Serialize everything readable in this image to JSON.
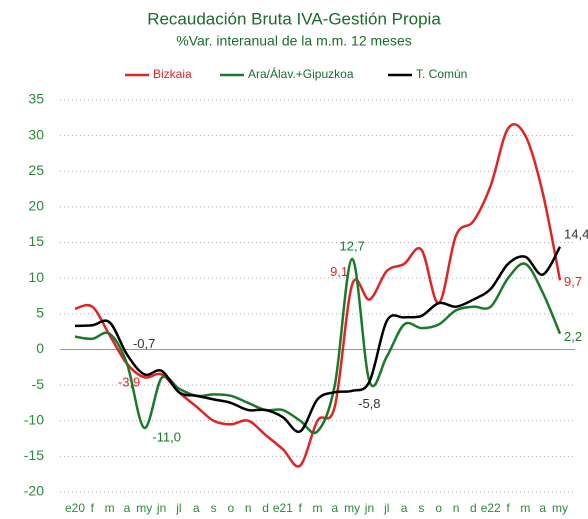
{
  "chart_data": {
    "type": "line",
    "title": "Recaudación Bruta IVA-Gestión Propia",
    "subtitle": "%Var. interanual de la m.m. 12 meses",
    "categories": [
      "e20",
      "f",
      "m",
      "a",
      "my",
      "jn",
      "jl",
      "a",
      "s",
      "o",
      "n",
      "d",
      "e21",
      "f",
      "m",
      "a",
      "my",
      "jn",
      "jl",
      "a",
      "s",
      "o",
      "n",
      "d",
      "e22",
      "f",
      "m",
      "a",
      "my"
    ],
    "series": [
      {
        "name": "Bizkaia",
        "color": "#e02424",
        "values": [
          5.7,
          6,
          2,
          -2,
          -3.9,
          -3.5,
          -6,
          -8,
          -10,
          -10.5,
          -10,
          -12,
          -14,
          -16.3,
          -10,
          -8,
          9.1,
          7,
          11,
          12,
          14,
          6.5,
          16,
          18,
          23,
          31,
          30,
          22,
          9.7
        ],
        "value_labels": [
          null,
          null,
          null,
          null,
          "-3,9",
          null,
          null,
          null,
          null,
          null,
          null,
          null,
          null,
          null,
          null,
          null,
          "9,1",
          null,
          null,
          null,
          null,
          null,
          null,
          null,
          null,
          null,
          null,
          null,
          "9,7"
        ]
      },
      {
        "name": "Ara/Álav.+Gipuzkoa",
        "color": "#1a7a2a",
        "values": [
          1.8,
          1.5,
          2.2,
          -2,
          -11,
          -4,
          -5.5,
          -6.5,
          -6.3,
          -6.5,
          -7.5,
          -8.5,
          -8.5,
          -10,
          -11.5,
          -5,
          12.7,
          -4.5,
          -1,
          3.5,
          3,
          3.5,
          5.5,
          6,
          6,
          10,
          12,
          8,
          2.2
        ],
        "value_labels": [
          null,
          null,
          null,
          null,
          "-11,0",
          null,
          null,
          null,
          null,
          null,
          null,
          null,
          null,
          null,
          null,
          null,
          "12,7",
          null,
          null,
          null,
          null,
          null,
          null,
          null,
          null,
          null,
          null,
          null,
          "2,2"
        ]
      },
      {
        "name": "T. Común",
        "color": "#000000",
        "values": [
          3.3,
          3.4,
          3.8,
          -0.7,
          -3.5,
          -3,
          -6,
          -6.5,
          -7,
          -7.5,
          -8.5,
          -8.5,
          -9.5,
          -11.5,
          -7,
          -6,
          -5.8,
          -4.5,
          4,
          4.5,
          4.7,
          6.5,
          6,
          7,
          8.5,
          12,
          13,
          10.5,
          14.4
        ],
        "value_labels": [
          null,
          null,
          null,
          "-0,7",
          null,
          null,
          null,
          null,
          null,
          null,
          null,
          null,
          null,
          null,
          null,
          null,
          "-5,8",
          null,
          null,
          null,
          null,
          null,
          null,
          null,
          null,
          null,
          null,
          null,
          "14,4"
        ]
      }
    ],
    "ylim": [
      -20,
      35
    ],
    "yticks": [
      35,
      30,
      25,
      20,
      15,
      10,
      5,
      0,
      -5,
      -10,
      -15,
      -20
    ],
    "grid": true
  }
}
